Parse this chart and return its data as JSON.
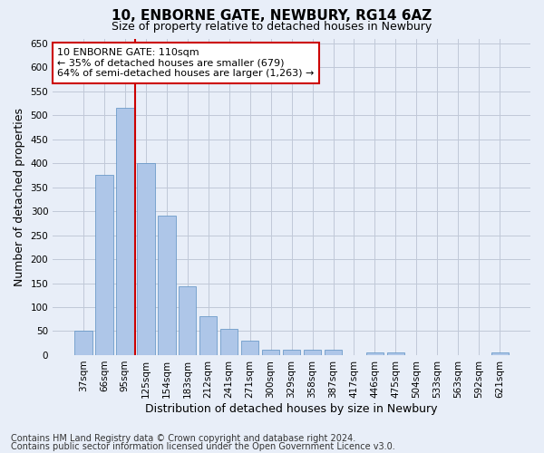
{
  "title": "10, ENBORNE GATE, NEWBURY, RG14 6AZ",
  "subtitle": "Size of property relative to detached houses in Newbury",
  "xlabel": "Distribution of detached houses by size in Newbury",
  "ylabel": "Number of detached properties",
  "categories": [
    "37sqm",
    "66sqm",
    "95sqm",
    "125sqm",
    "154sqm",
    "183sqm",
    "212sqm",
    "241sqm",
    "271sqm",
    "300sqm",
    "329sqm",
    "358sqm",
    "387sqm",
    "417sqm",
    "446sqm",
    "475sqm",
    "504sqm",
    "533sqm",
    "563sqm",
    "592sqm",
    "621sqm"
  ],
  "values": [
    50,
    375,
    515,
    400,
    290,
    143,
    82,
    55,
    30,
    12,
    12,
    12,
    12,
    0,
    5,
    5,
    0,
    0,
    0,
    0,
    5
  ],
  "bar_color": "#aec6e8",
  "bar_edge_color": "#5a8fc2",
  "vline_x": 2.5,
  "vline_color": "#cc0000",
  "annotation_text": "10 ENBORNE GATE: 110sqm\n← 35% of detached houses are smaller (679)\n64% of semi-detached houses are larger (1,263) →",
  "annotation_box_color": "#ffffff",
  "annotation_box_edge": "#cc0000",
  "ylim": [
    0,
    660
  ],
  "yticks": [
    0,
    50,
    100,
    150,
    200,
    250,
    300,
    350,
    400,
    450,
    500,
    550,
    600,
    650
  ],
  "background_color": "#e8eef8",
  "plot_bg_color": "#e8eef8",
  "footer_line1": "Contains HM Land Registry data © Crown copyright and database right 2024.",
  "footer_line2": "Contains public sector information licensed under the Open Government Licence v3.0.",
  "title_fontsize": 11,
  "subtitle_fontsize": 9,
  "xlabel_fontsize": 9,
  "ylabel_fontsize": 9,
  "tick_fontsize": 7.5,
  "footer_fontsize": 7,
  "annotation_fontsize": 8
}
